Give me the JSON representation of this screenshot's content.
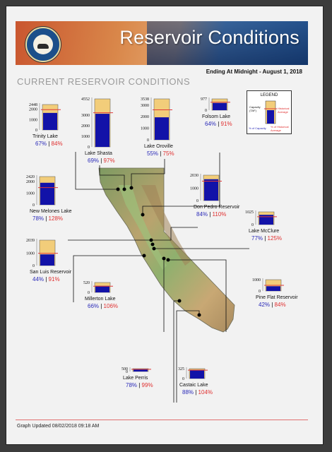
{
  "header": {
    "title": "Reservoir Conditions",
    "subtitle": "Ending At Midnight - August 1, 2018",
    "section_title": "CURRENT RESERVOIR CONDITIONS"
  },
  "legend": {
    "title": "LEGEND",
    "capacity": "Capacity (TAF)",
    "historical": "Historical Average",
    "pct_capacity": "% of Capacity",
    "pct_historical": "% of Historical Average"
  },
  "colors": {
    "capacity": "#f2cd7a",
    "storage": "#1212a8",
    "historical_line": "#e03a3a",
    "pct_capacity": "#2a2ab8",
    "pct_historical": "#e03030"
  },
  "chart_data": {
    "type": "bar",
    "reservoirs": [
      {
        "name": "Trinity Lake",
        "capacity": 2448,
        "storage": 1640,
        "historical": 1952,
        "pct_capacity": "67%",
        "pct_historical": "84%",
        "ticks": [
          "2448",
          "2000",
          "1000",
          "0"
        ]
      },
      {
        "name": "Lake Shasta",
        "capacity": 4552,
        "storage": 3141,
        "historical": 3238,
        "pct_capacity": "69%",
        "pct_historical": "97%",
        "ticks": [
          "4552",
          "3000",
          "2000",
          "1000",
          "0"
        ]
      },
      {
        "name": "Lake Oroville",
        "capacity": 3538,
        "storage": 1946,
        "historical": 2595,
        "pct_capacity": "55%",
        "pct_historical": "75%",
        "ticks": [
          "3538",
          "3000",
          "2000",
          "1000",
          "0"
        ]
      },
      {
        "name": "Folsom Lake",
        "capacity": 977,
        "storage": 625,
        "historical": 687,
        "pct_capacity": "64%",
        "pct_historical": "91%",
        "ticks": [
          "977",
          "0"
        ]
      },
      {
        "name": "New Melones Lake",
        "capacity": 2420,
        "storage": 1888,
        "historical": 1475,
        "pct_capacity": "78%",
        "pct_historical": "128%",
        "ticks": [
          "2420",
          "2000",
          "1000",
          "0"
        ]
      },
      {
        "name": "Don Pedro Reservoir",
        "capacity": 2030,
        "storage": 1705,
        "historical": 1550,
        "pct_capacity": "84%",
        "pct_historical": "110%",
        "ticks": [
          "2030",
          "1000",
          "0"
        ]
      },
      {
        "name": "Lake McClure",
        "capacity": 1025,
        "storage": 789,
        "historical": 631,
        "pct_capacity": "77%",
        "pct_historical": "125%",
        "ticks": [
          "1025",
          "0"
        ]
      },
      {
        "name": "San Luis Reservoir",
        "capacity": 2039,
        "storage": 897,
        "historical": 986,
        "pct_capacity": "44%",
        "pct_historical": "91%",
        "ticks": [
          "2039",
          "1000",
          "0"
        ]
      },
      {
        "name": "Millerton Lake",
        "capacity": 520,
        "storage": 343,
        "historical": 324,
        "pct_capacity": "66%",
        "pct_historical": "106%",
        "ticks": [
          "520",
          "0"
        ]
      },
      {
        "name": "Pine Flat Reservoir",
        "capacity": 1000,
        "storage": 420,
        "historical": 500,
        "pct_capacity": "42%",
        "pct_historical": "84%",
        "ticks": [
          "1000",
          "0"
        ]
      },
      {
        "name": "Lake Perris",
        "capacity": 131,
        "storage": 102,
        "historical": 103,
        "pct_capacity": "78%",
        "pct_historical": "99%",
        "ticks": [
          "500",
          "0"
        ]
      },
      {
        "name": "Castaic Lake",
        "capacity": 325,
        "storage": 286,
        "historical": 275,
        "pct_capacity": "88%",
        "pct_historical": "104%",
        "ticks": [
          "325",
          "0"
        ]
      }
    ]
  },
  "footer": {
    "updated": "Graph Updated 08/02/2018 09:18 AM"
  }
}
